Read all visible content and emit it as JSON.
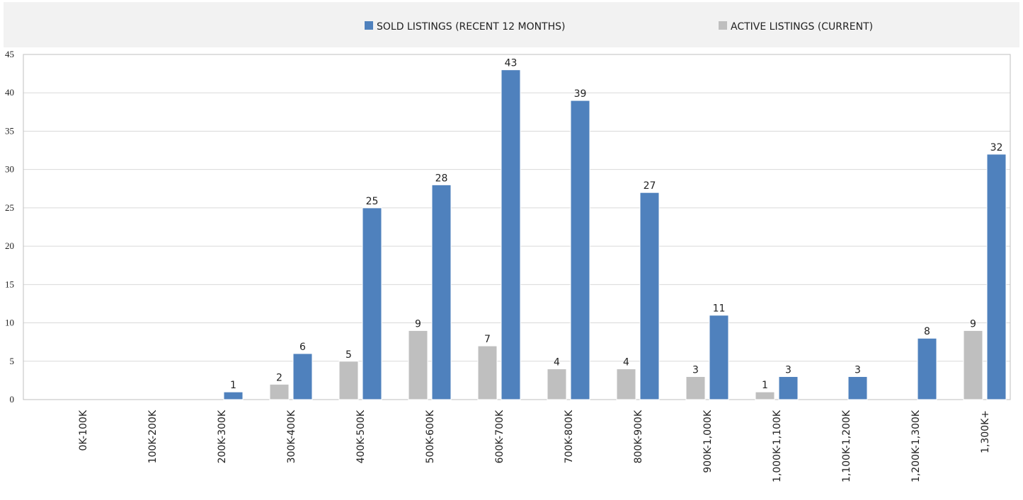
{
  "chart_data": {
    "type": "bar",
    "categories": [
      "0K-100K",
      "100K-200K",
      "200K-300K",
      "300K-400K",
      "400K-500K",
      "500K-600K",
      "600K-700K",
      "700K-800K",
      "800K-900K",
      "900K-1,000K",
      "1,000K-1,100K",
      "1,100K-1,200K",
      "1,200K-1,300K",
      "1,300K+"
    ],
    "series": [
      {
        "name": "SOLD LISTINGS (RECENT 12 MONTHS)",
        "color": "#4f81bd",
        "values": [
          0,
          0,
          1,
          6,
          25,
          28,
          43,
          39,
          27,
          11,
          3,
          3,
          8,
          32
        ]
      },
      {
        "name": "ACTIVE LISTINGS (CURRENT)",
        "color": "#bfbfbf",
        "values": [
          0,
          0,
          0,
          2,
          5,
          9,
          7,
          4,
          4,
          3,
          1,
          0,
          0,
          9
        ]
      }
    ],
    "ylim": [
      0,
      45
    ],
    "yticks": [
      0,
      5,
      10,
      15,
      20,
      25,
      30,
      35,
      40,
      45
    ],
    "grid": true,
    "legend": "top"
  }
}
